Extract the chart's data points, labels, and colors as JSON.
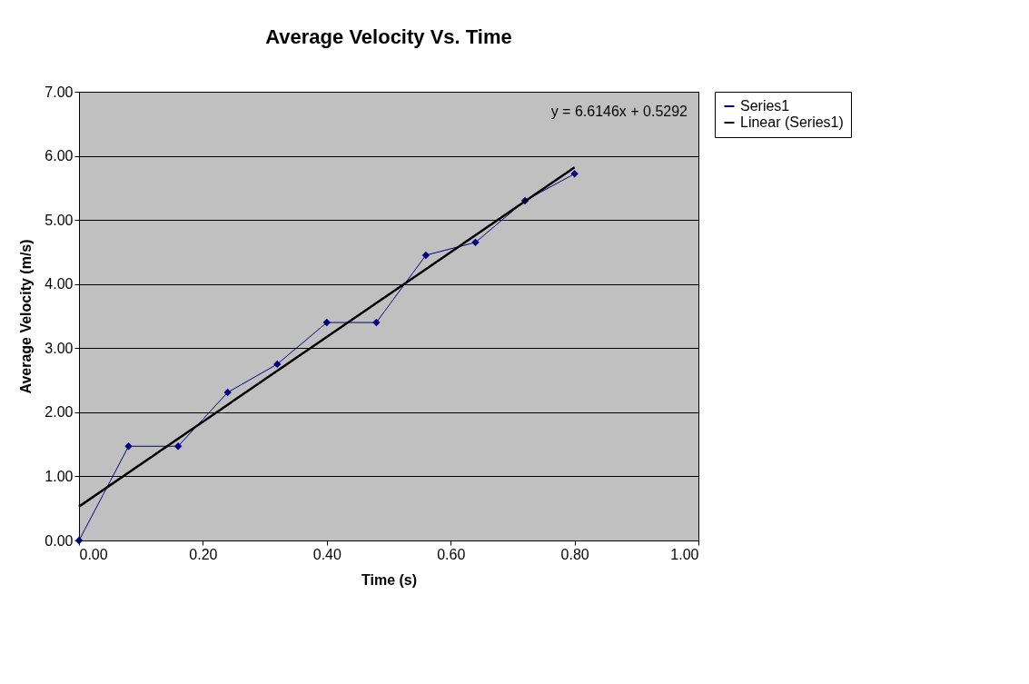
{
  "chart_data": {
    "type": "line",
    "title": "Average Velocity Vs. Time",
    "xlabel": "Time (s)",
    "ylabel": "Average Velocity (m/s)",
    "x": [
      0.0,
      0.08,
      0.16,
      0.24,
      0.32,
      0.4,
      0.48,
      0.56,
      0.64,
      0.72,
      0.8
    ],
    "series": [
      {
        "name": "Series1",
        "color": "#000080",
        "marker": "diamond",
        "values": [
          0.0,
          1.47,
          1.47,
          2.31,
          2.75,
          3.4,
          3.4,
          4.45,
          4.65,
          5.3,
          5.72
        ]
      },
      {
        "name": "Linear (Series1)",
        "color": "#000000",
        "type": "line",
        "marker": "none",
        "x": [
          0.0,
          0.8
        ],
        "values": [
          0.53,
          5.82
        ]
      }
    ],
    "xlim": [
      0,
      1
    ],
    "ylim": [
      0,
      7
    ],
    "xticks": [
      {
        "value": 0,
        "label": "0.00"
      },
      {
        "value": 0.2,
        "label": "0.20"
      },
      {
        "value": 0.4,
        "label": "0.40"
      },
      {
        "value": 0.6,
        "label": "0.60"
      },
      {
        "value": 0.8,
        "label": "0.80"
      },
      {
        "value": 1,
        "label": "1.00"
      }
    ],
    "yticks": [
      {
        "value": 0,
        "label": "0.00"
      },
      {
        "value": 1,
        "label": "1.00"
      },
      {
        "value": 2,
        "label": "2.00"
      },
      {
        "value": 3,
        "label": "3.00"
      },
      {
        "value": 4,
        "label": "4.00"
      },
      {
        "value": 5,
        "label": "5.00"
      },
      {
        "value": 6,
        "label": "6.00"
      },
      {
        "value": 7,
        "label": "7.00"
      }
    ],
    "annotations": [
      "y = 6.6146x + 0.5292"
    ],
    "grid": "y",
    "legend": "right",
    "line_style": "solid"
  }
}
